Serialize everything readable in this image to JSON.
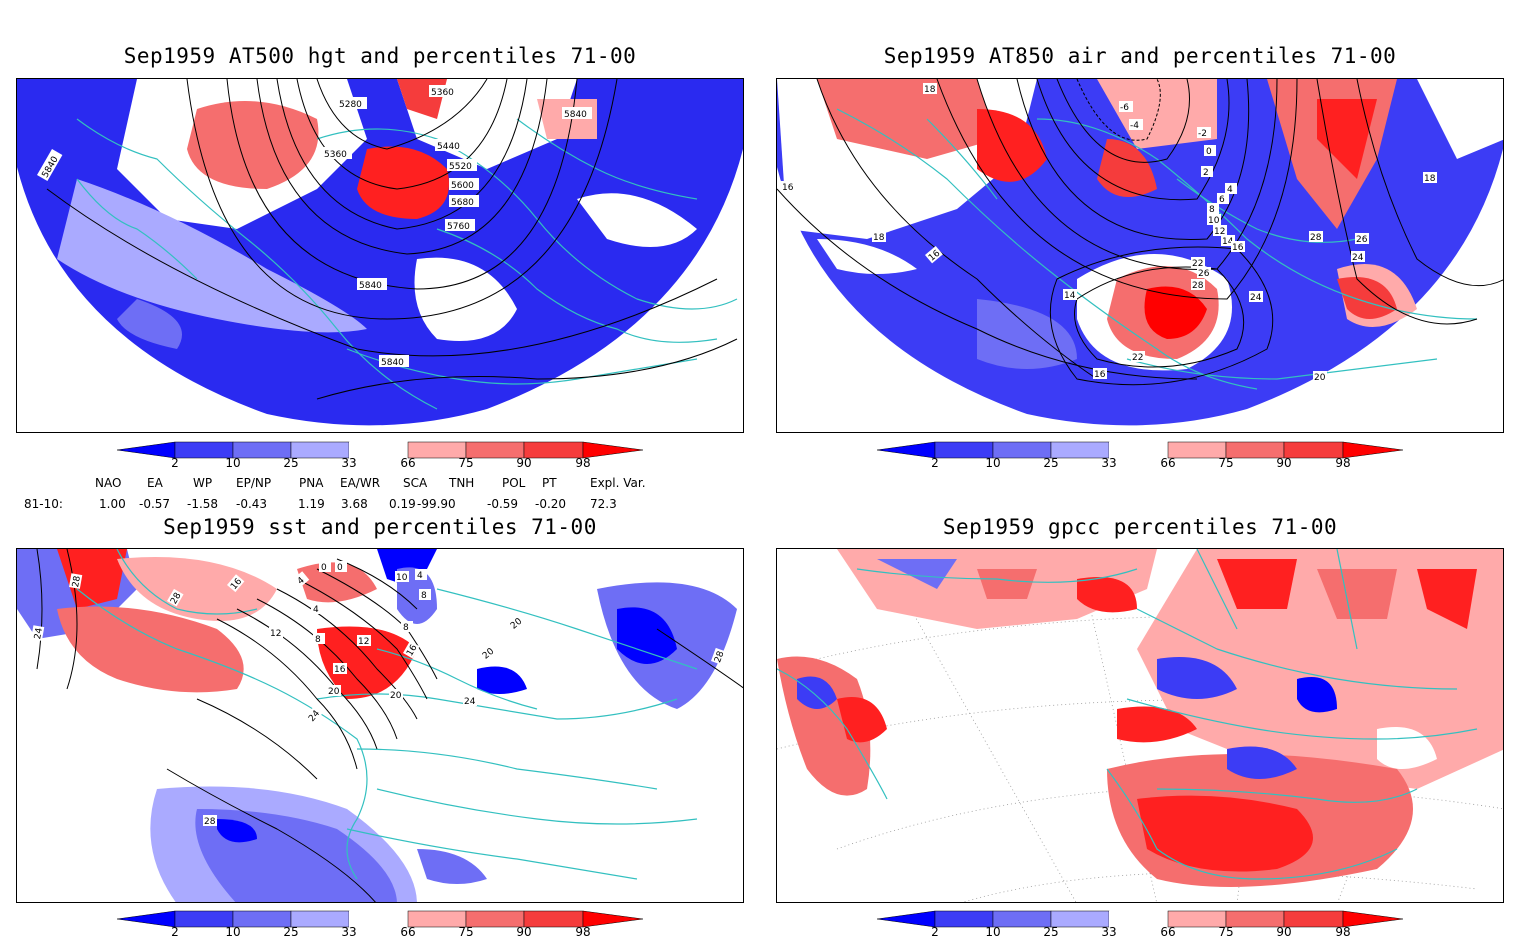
{
  "panels": [
    {
      "id": "p1",
      "title": "Sep1959 AT500 hgt and percentiles 71-00",
      "contour_labels": [
        "5280",
        "5360",
        "5360",
        "5440",
        "5520",
        "5600",
        "5680",
        "5760",
        "5840",
        "5840",
        "5840",
        "5840"
      ]
    },
    {
      "id": "p2",
      "title": "Sep1959 AT850 air and percentiles 71-00",
      "contour_labels": [
        "-6",
        "-4",
        "-2",
        "0",
        "2",
        "4",
        "6",
        "8",
        "10",
        "12",
        "14",
        "16",
        "16",
        "16",
        "16",
        "18",
        "18",
        "18",
        "20",
        "22",
        "22",
        "24",
        "24",
        "26",
        "26",
        "28",
        "28",
        "14"
      ]
    },
    {
      "id": "p3",
      "title": "Sep1959 sst and percentiles 71-00",
      "contour_labels": [
        "28",
        "28",
        "24",
        "16",
        "4",
        "0",
        "0",
        "4",
        "8",
        "8",
        "12",
        "12",
        "16",
        "16",
        "20",
        "20",
        "24",
        "24",
        "28",
        "28",
        "10",
        "4",
        "8",
        "20",
        "20"
      ]
    },
    {
      "id": "p4",
      "title": "Sep1959 gpcc percentiles 71-00",
      "contour_labels": []
    }
  ],
  "colorbar": {
    "labels": [
      "2",
      "10",
      "25",
      "33",
      "66",
      "75",
      "90",
      "98"
    ],
    "colors": [
      "#0000ff",
      "#3c3cf5",
      "#6e6ef5",
      "#aaaaff",
      "#ffffff",
      "#ffaaaa",
      "#f56e6e",
      "#f53c3c",
      "#ff0000"
    ]
  },
  "indices": {
    "headers": [
      "NAO",
      "EA",
      "WP",
      "EP/NP",
      "PNA",
      "EA/WR",
      "SCA",
      "TNH",
      "POL",
      "PT",
      "Expl. Var."
    ],
    "row_label": "81-10:",
    "values": [
      "1.00",
      "-0.57",
      "-1.58",
      "-0.43",
      "1.19",
      "3.68",
      "0.19",
      "-99.90",
      "-0.59",
      "-0.20",
      "72.3"
    ]
  },
  "colors": {
    "coastline": "#33c0c0",
    "contour": "#000000",
    "frame": "#000000"
  }
}
